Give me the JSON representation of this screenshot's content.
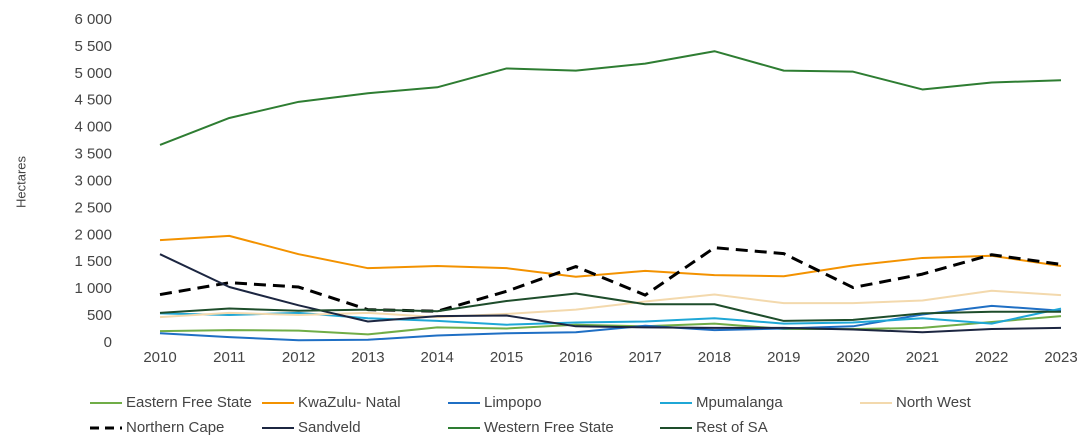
{
  "chart_data": {
    "type": "line",
    "y_label": "Hectares",
    "x": [
      2010,
      2011,
      2012,
      2013,
      2014,
      2015,
      2016,
      2017,
      2018,
      2019,
      2020,
      2021,
      2022,
      2023
    ],
    "xlim": [
      2010,
      2023
    ],
    "ylim": [
      0,
      6000
    ],
    "yticks": [
      0,
      500,
      {
        "value": 1000,
        "label": "1 000"
      },
      {
        "value": 1500,
        "label": "1 500"
      },
      {
        "value": 2000,
        "label": "2 000"
      },
      {
        "value": 2500,
        "label": "2 500"
      },
      {
        "value": 3000,
        "label": "3 000"
      },
      {
        "value": 3500,
        "label": "3 500"
      },
      {
        "value": 4000,
        "label": "4 000"
      },
      {
        "value": 4500,
        "label": "4 500"
      },
      {
        "value": 5000,
        "label": "5 000"
      },
      {
        "value": 5500,
        "label": "5 500"
      },
      {
        "value": 6000,
        "label": "6 000"
      }
    ],
    "grid": false,
    "legend": "bottom",
    "series": [
      {
        "name": "Eastern Free State",
        "color": "#70ad47",
        "values": [
          220,
          240,
          230,
          160,
          290,
          270,
          340,
          310,
          360,
          260,
          260,
          280,
          390,
          500
        ]
      },
      {
        "name": "KwaZulu- Natal",
        "color": "#f39200",
        "values": [
          1910,
          1990,
          1650,
          1390,
          1430,
          1390,
          1230,
          1340,
          1260,
          1240,
          1440,
          1580,
          1620,
          1430
        ]
      },
      {
        "name": "Limpopo",
        "color": "#1f6fc4",
        "values": [
          180,
          110,
          50,
          60,
          140,
          180,
          200,
          320,
          240,
          270,
          310,
          530,
          690,
          600
        ]
      },
      {
        "name": "Mpumalanga",
        "color": "#1fa7d6",
        "values": [
          550,
          520,
          560,
          460,
          410,
          340,
          380,
          400,
          460,
          360,
          380,
          460,
          360,
          640
        ]
      },
      {
        "name": "North West",
        "color": "#f3d9ad",
        "values": [
          480,
          560,
          520,
          560,
          480,
          540,
          620,
          770,
          900,
          740,
          740,
          790,
          970,
          890
        ]
      },
      {
        "name": "Northern Cape",
        "color": "#000000",
        "dashed": true,
        "values": [
          900,
          1120,
          1040,
          620,
          590,
          960,
          1420,
          890,
          1770,
          1660,
          1030,
          1280,
          1640,
          1460
        ]
      },
      {
        "name": "Sandveld",
        "color": "#1c2641",
        "values": [
          1650,
          1040,
          700,
          400,
          500,
          510,
          310,
          290,
          280,
          280,
          250,
          200,
          260,
          280
        ]
      },
      {
        "name": "Western Free State",
        "color": "#2e7d32",
        "values": [
          3680,
          4180,
          4480,
          4640,
          4750,
          5100,
          5060,
          5190,
          5420,
          5060,
          5040,
          4710,
          4840,
          4880
        ]
      },
      {
        "name": "Rest of SA",
        "color": "#1e4d2b",
        "values": [
          560,
          640,
          600,
          620,
          590,
          780,
          920,
          720,
          720,
          410,
          430,
          550,
          580,
          580
        ]
      }
    ]
  }
}
